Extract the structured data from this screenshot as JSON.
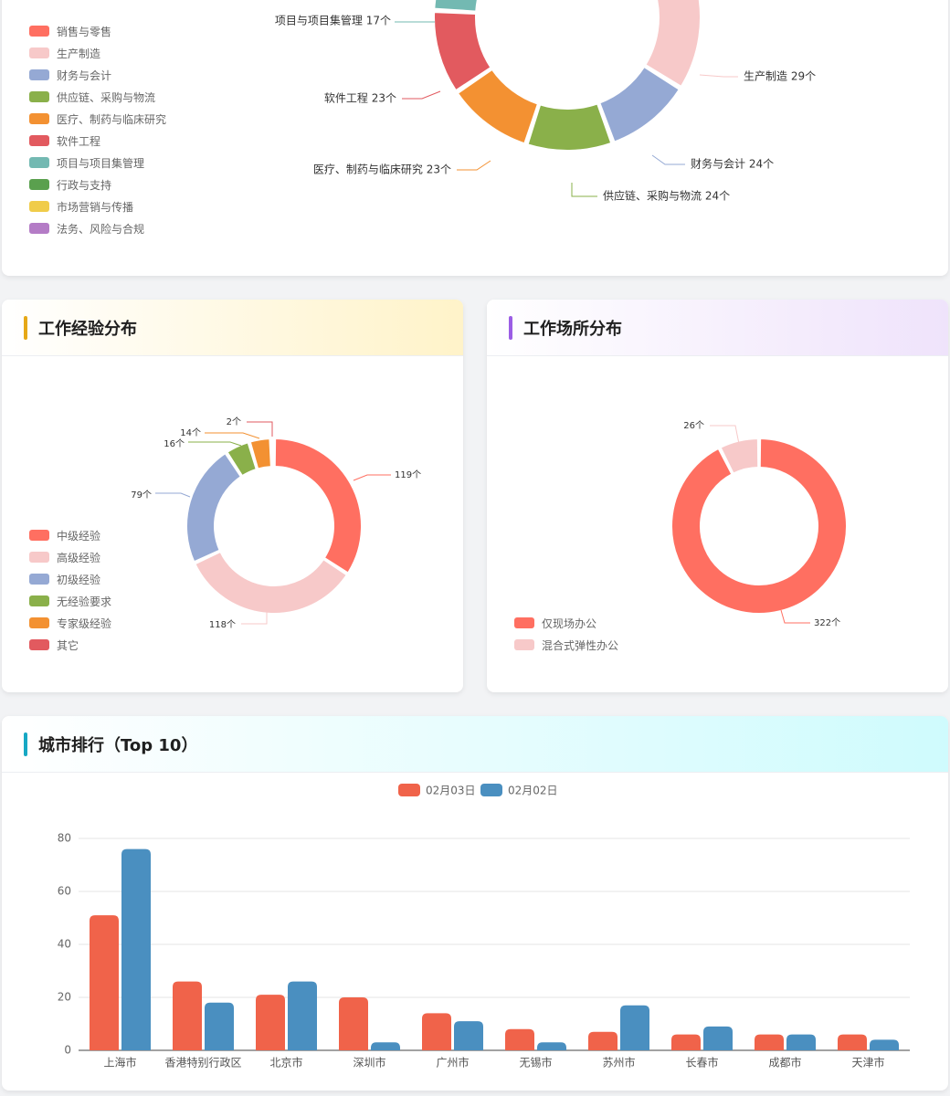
{
  "industry": {
    "legend": [
      {
        "label": "销售与零售",
        "color": "#ff6f61"
      },
      {
        "label": "生产制造",
        "color": "#f7c9c9"
      },
      {
        "label": "财务与会计",
        "color": "#95a9d4"
      },
      {
        "label": "供应链、采购与物流",
        "color": "#8ab04a"
      },
      {
        "label": "医疗、制药与临床研究",
        "color": "#f39132"
      },
      {
        "label": "软件工程",
        "color": "#e25a5f"
      },
      {
        "label": "项目与项目集管理",
        "color": "#73b9b2"
      },
      {
        "label": "行政与支持",
        "color": "#5aa04e"
      },
      {
        "label": "市场营销与传播",
        "color": "#f0cc4a"
      },
      {
        "label": "法务、风险与合规",
        "color": "#b47cc6"
      }
    ],
    "labels": [
      {
        "text": "项目与项目集管理 17个"
      },
      {
        "text": "生产制造 29个"
      },
      {
        "text": "软件工程 23个"
      },
      {
        "text": "财务与会计 24个"
      },
      {
        "text": "医疗、制药与临床研究 23个"
      },
      {
        "text": "供应链、采购与物流 24个"
      }
    ]
  },
  "experience": {
    "title": "工作经验分布",
    "accent": "#e6a817",
    "header_bg": [
      "#ffffff",
      "#fff3c9"
    ],
    "legend": [
      {
        "label": "中级经验",
        "color": "#ff6f61"
      },
      {
        "label": "高级经验",
        "color": "#f7c9c9"
      },
      {
        "label": "初级经验",
        "color": "#95a9d4"
      },
      {
        "label": "无经验要求",
        "color": "#8ab04a"
      },
      {
        "label": "专家级经验",
        "color": "#f39132"
      },
      {
        "label": "其它",
        "color": "#e25a5f"
      }
    ],
    "labels": [
      {
        "text": "119个"
      },
      {
        "text": "118个"
      },
      {
        "text": "79个"
      },
      {
        "text": "16个"
      },
      {
        "text": "14个"
      },
      {
        "text": "2个"
      }
    ]
  },
  "workplace": {
    "title": "工作场所分布",
    "accent": "#9b5de5",
    "header_bg": [
      "#ffffff",
      "#efe3fb"
    ],
    "legend": [
      {
        "label": "仅现场办公",
        "color": "#ff6f61"
      },
      {
        "label": "混合式弹性办公",
        "color": "#f7c9c9"
      }
    ],
    "labels": [
      {
        "text": "322个"
      },
      {
        "text": "26个"
      }
    ]
  },
  "city": {
    "title": "城市排行（Top 10）",
    "accent": "#17a8c4",
    "header_bg": [
      "#ffffff",
      "#cffbfd"
    ]
  },
  "chart_data": [
    {
      "type": "pie",
      "style": "donut",
      "categories": [
        "销售与零售",
        "生产制造",
        "财务与会计",
        "供应链、采购与物流",
        "医疗、制药与临床研究",
        "软件工程",
        "项目与项目集管理",
        "行政与支持",
        "市场营销与传播",
        "法务、风险与合规"
      ],
      "values": [
        null,
        29,
        24,
        24,
        23,
        23,
        17,
        null,
        null,
        null
      ],
      "legend_position": "left"
    },
    {
      "type": "pie",
      "style": "donut",
      "categories": [
        "中级经验",
        "高级经验",
        "初级经验",
        "无经验要求",
        "专家级经验",
        "其它"
      ],
      "values": [
        119,
        118,
        79,
        16,
        14,
        2
      ],
      "legend_position": "bottom-left"
    },
    {
      "type": "pie",
      "style": "donut",
      "categories": [
        "仅现场办公",
        "混合式弹性办公"
      ],
      "values": [
        322,
        26
      ],
      "legend_position": "bottom-left"
    },
    {
      "type": "bar",
      "categories": [
        "上海市",
        "香港特别行政区",
        "北京市",
        "深圳市",
        "广州市",
        "无锡市",
        "苏州市",
        "长春市",
        "成都市",
        "天津市"
      ],
      "series": [
        {
          "name": "02月03日",
          "color": "#f0634a",
          "values": [
            51,
            26,
            21,
            20,
            14,
            8,
            7,
            6,
            6,
            6
          ]
        },
        {
          "name": "02月02日",
          "color": "#4a8fc0",
          "values": [
            76,
            18,
            26,
            3,
            11,
            3,
            17,
            9,
            6,
            4
          ]
        }
      ],
      "yticks": [
        "0",
        "20",
        "40",
        "60",
        "80"
      ],
      "ylim": [
        0,
        80
      ],
      "grid": true,
      "legend_position": "top-center"
    }
  ]
}
